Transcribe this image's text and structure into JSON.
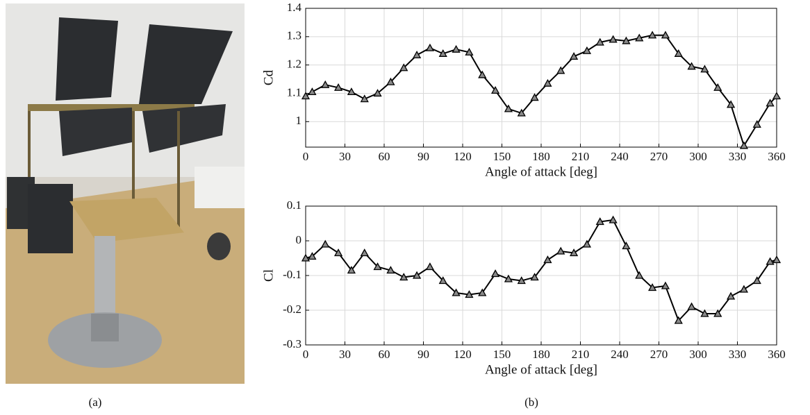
{
  "figure": {
    "labels": [
      "(a)",
      "(b)"
    ]
  },
  "chart_data": [
    {
      "type": "line",
      "ylabel": "Cd",
      "xlabel": "Angle of attack [deg]",
      "x": [
        0,
        5,
        15,
        25,
        35,
        45,
        55,
        65,
        75,
        85,
        95,
        105,
        115,
        125,
        135,
        145,
        155,
        165,
        175,
        185,
        195,
        205,
        215,
        225,
        235,
        245,
        255,
        265,
        275,
        285,
        295,
        305,
        315,
        325,
        335,
        345,
        355,
        360
      ],
      "series": [
        {
          "name": "Cd",
          "color": "#000000",
          "values": [
            1.09,
            1.105,
            1.13,
            1.12,
            1.105,
            1.08,
            1.1,
            1.14,
            1.19,
            1.235,
            1.26,
            1.24,
            1.255,
            1.245,
            1.165,
            1.11,
            1.045,
            1.03,
            1.085,
            1.135,
            1.18,
            1.23,
            1.25,
            1.28,
            1.29,
            1.285,
            1.295,
            1.305,
            1.305,
            1.24,
            1.195,
            1.185,
            1.12,
            1.06,
            0.915,
            0.99,
            1.065,
            1.09
          ]
        }
      ],
      "xlim": [
        0,
        360
      ],
      "xticks": [
        0,
        30,
        60,
        90,
        120,
        150,
        180,
        210,
        240,
        270,
        300,
        330,
        360
      ],
      "ylim": [
        0.91,
        1.4
      ],
      "yticks": [
        1,
        1.1,
        1.2,
        1.3,
        1.4
      ],
      "grid": true,
      "marker": "triangle"
    },
    {
      "type": "line",
      "ylabel": "Cl",
      "xlabel": "Angle of attack [deg]",
      "x": [
        0,
        5,
        15,
        25,
        35,
        45,
        55,
        65,
        75,
        85,
        95,
        105,
        115,
        125,
        135,
        145,
        155,
        165,
        175,
        185,
        195,
        205,
        215,
        225,
        235,
        245,
        255,
        265,
        275,
        285,
        295,
        305,
        315,
        325,
        335,
        345,
        355,
        360
      ],
      "series": [
        {
          "name": "Cl",
          "color": "#000000",
          "values": [
            -0.05,
            -0.045,
            -0.01,
            -0.035,
            -0.085,
            -0.035,
            -0.075,
            -0.085,
            -0.105,
            -0.1,
            -0.075,
            -0.115,
            -0.15,
            -0.155,
            -0.15,
            -0.095,
            -0.11,
            -0.115,
            -0.105,
            -0.055,
            -0.03,
            -0.035,
            -0.01,
            0.055,
            0.06,
            -0.015,
            -0.1,
            -0.135,
            -0.13,
            -0.23,
            -0.19,
            -0.21,
            -0.21,
            -0.16,
            -0.14,
            -0.115,
            -0.06,
            -0.055
          ]
        }
      ],
      "xlim": [
        0,
        360
      ],
      "xticks": [
        0,
        30,
        60,
        90,
        120,
        150,
        180,
        210,
        240,
        270,
        300,
        330,
        360
      ],
      "ylim": [
        -0.3,
        0.1
      ],
      "yticks": [
        -0.3,
        -0.2,
        -0.1,
        0,
        0.1
      ],
      "grid": true,
      "marker": "triangle"
    }
  ]
}
